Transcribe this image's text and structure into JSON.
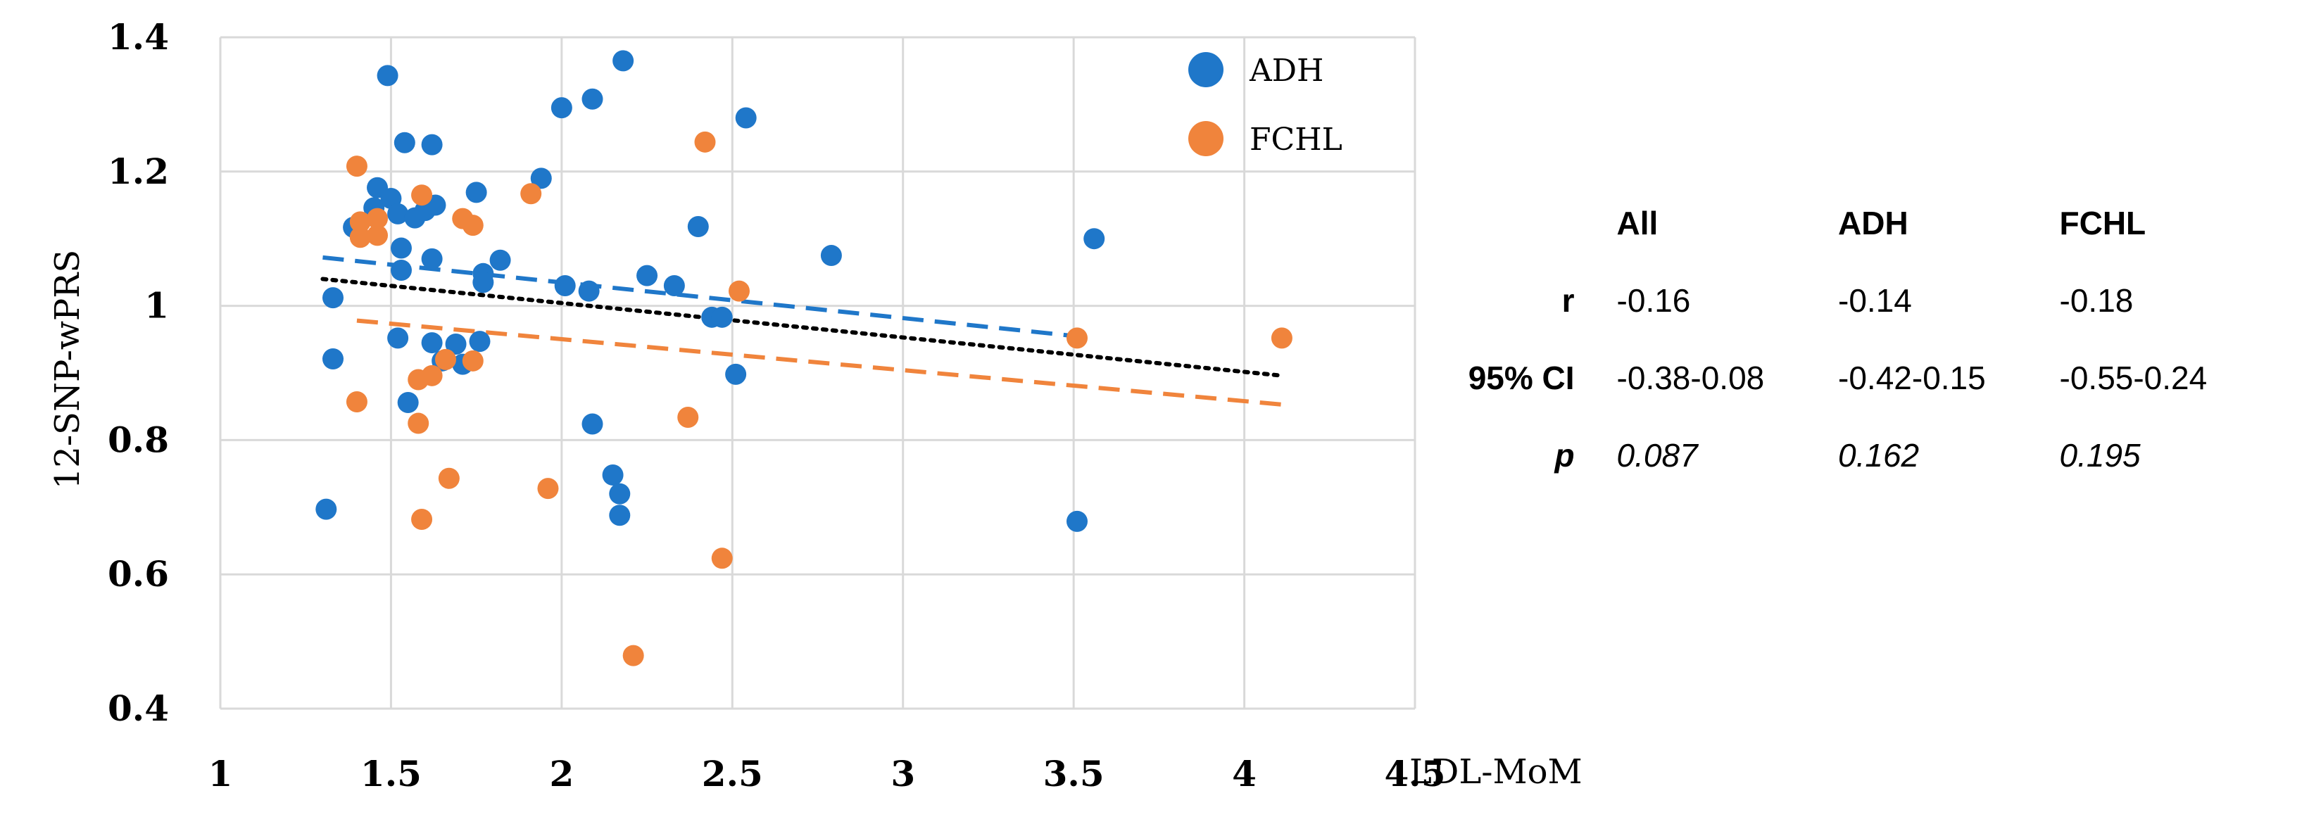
{
  "chart_data": {
    "type": "scatter",
    "title": "",
    "xlabel": "LDL-MoM",
    "ylabel": "12-SNP-wPRS",
    "xlim": [
      1,
      4.5
    ],
    "ylim": [
      0.4,
      1.4
    ],
    "xticks": [
      1,
      1.5,
      2,
      2.5,
      3,
      3.5,
      4,
      4.5
    ],
    "yticks": [
      0.4,
      0.6,
      0.8,
      1,
      1.2,
      1.4
    ],
    "xtick_labels": [
      "1",
      "1.5",
      "2",
      "2.5",
      "3",
      "3.5",
      "4",
      "4.5"
    ],
    "ytick_labels": [
      "0.4",
      "0.6",
      "0.8",
      "1",
      "1.2",
      "1.4"
    ],
    "grid": true,
    "legend_position": "top-right",
    "series": [
      {
        "name": "ADH",
        "color": "#1f77c9",
        "points": [
          [
            1.31,
            0.697
          ],
          [
            1.33,
            1.012
          ],
          [
            1.33,
            0.921
          ],
          [
            1.49,
            1.343
          ],
          [
            1.54,
            1.243
          ],
          [
            1.62,
            1.24
          ],
          [
            1.46,
            1.176
          ],
          [
            1.5,
            1.16
          ],
          [
            1.39,
            1.117
          ],
          [
            1.45,
            1.146
          ],
          [
            1.52,
            1.137
          ],
          [
            1.57,
            1.131
          ],
          [
            1.6,
            1.142
          ],
          [
            1.63,
            1.15
          ],
          [
            1.53,
            1.086
          ],
          [
            1.62,
            1.07
          ],
          [
            1.53,
            1.053
          ],
          [
            1.52,
            0.952
          ],
          [
            1.62,
            0.945
          ],
          [
            1.65,
            0.918
          ],
          [
            1.69,
            0.943
          ],
          [
            1.71,
            0.913
          ],
          [
            1.76,
            0.947
          ],
          [
            1.55,
            0.856
          ],
          [
            1.75,
            1.169
          ],
          [
            1.77,
            1.048
          ],
          [
            1.77,
            1.035
          ],
          [
            1.82,
            1.068
          ],
          [
            1.94,
            1.19
          ],
          [
            2.0,
            1.295
          ],
          [
            2.09,
            1.308
          ],
          [
            2.18,
            1.365
          ],
          [
            2.01,
            1.03
          ],
          [
            2.08,
            1.022
          ],
          [
            2.25,
            1.045
          ],
          [
            2.33,
            1.03
          ],
          [
            2.4,
            1.118
          ],
          [
            2.44,
            0.983
          ],
          [
            2.47,
            0.983
          ],
          [
            2.51,
            0.898
          ],
          [
            2.54,
            1.28
          ],
          [
            2.79,
            1.075
          ],
          [
            2.09,
            0.824
          ],
          [
            2.15,
            0.748
          ],
          [
            2.17,
            0.72
          ],
          [
            2.17,
            0.688
          ],
          [
            3.51,
            0.679
          ],
          [
            3.56,
            1.1
          ]
        ]
      },
      {
        "name": "FCHL",
        "color": "#f0843c",
        "points": [
          [
            1.4,
            1.208
          ],
          [
            1.41,
            1.125
          ],
          [
            1.46,
            1.13
          ],
          [
            1.41,
            1.102
          ],
          [
            1.46,
            1.105
          ],
          [
            1.59,
            1.165
          ],
          [
            1.71,
            1.13
          ],
          [
            1.74,
            1.12
          ],
          [
            1.91,
            1.167
          ],
          [
            1.4,
            0.857
          ],
          [
            1.58,
            0.89
          ],
          [
            1.62,
            0.896
          ],
          [
            1.66,
            0.92
          ],
          [
            1.74,
            0.918
          ],
          [
            1.58,
            0.825
          ],
          [
            1.59,
            0.682
          ],
          [
            1.67,
            0.743
          ],
          [
            1.96,
            0.728
          ],
          [
            2.21,
            0.479
          ],
          [
            2.37,
            0.834
          ],
          [
            2.42,
            1.244
          ],
          [
            2.47,
            0.624
          ],
          [
            2.52,
            1.022
          ],
          [
            3.51,
            0.952
          ],
          [
            4.11,
            0.952
          ]
        ]
      }
    ],
    "trendlines": [
      {
        "name": "All",
        "style": "dotted",
        "color": "#000000",
        "x": [
          1.3,
          4.11
        ],
        "y": [
          1.04,
          0.896
        ]
      },
      {
        "name": "ADH",
        "style": "dashed",
        "color": "#1f77c9",
        "x": [
          1.3,
          3.56
        ],
        "y": [
          1.072,
          0.952
        ]
      },
      {
        "name": "FCHL",
        "style": "dashed",
        "color": "#f0843c",
        "x": [
          1.4,
          4.11
        ],
        "y": [
          0.978,
          0.853
        ]
      }
    ]
  },
  "stats_table": {
    "headers": [
      "All",
      "ADH",
      "FCHL"
    ],
    "rows": [
      {
        "label": "r",
        "values": [
          "-0.16",
          "-0.14",
          "-0.18"
        ]
      },
      {
        "label": "95% CI",
        "values": [
          "-0.38-0.08",
          "-0.42-0.15",
          "-0.55-0.24"
        ]
      },
      {
        "label": "p",
        "values": [
          "0.087",
          "0.162",
          "0.195"
        ]
      }
    ]
  }
}
